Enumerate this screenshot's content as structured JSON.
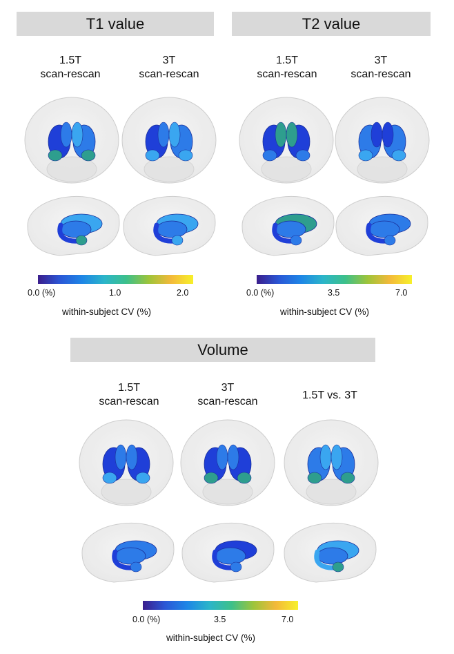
{
  "sections": [
    {
      "title": "T1 value",
      "columns": [
        {
          "label_line1": "1.5T",
          "label_line2": "scan-rescan"
        },
        {
          "label_line1": "3T",
          "label_line2": "scan-rescan"
        }
      ],
      "colorbar": {
        "ticks": [
          "0.0 (%)",
          "1.0",
          "2.0"
        ],
        "tick_values": [
          0.0,
          1.0,
          2.0
        ],
        "label": "within-subject CV (%)"
      }
    },
    {
      "title": "T2 value",
      "columns": [
        {
          "label_line1": "1.5T",
          "label_line2": "scan-rescan"
        },
        {
          "label_line1": "3T",
          "label_line2": "scan-rescan"
        }
      ],
      "colorbar": {
        "ticks": [
          "0.0 (%)",
          "3.5",
          "7.0"
        ],
        "tick_values": [
          0.0,
          3.5,
          7.0
        ],
        "label": "within-subject CV (%)"
      }
    },
    {
      "title": "Volume",
      "columns": [
        {
          "label_line1": "1.5T",
          "label_line2": "scan-rescan"
        },
        {
          "label_line1": "3T",
          "label_line2": "scan-rescan"
        },
        {
          "label_line1": "1.5T vs. 3T",
          "label_line2": ""
        }
      ],
      "colorbar": {
        "ticks": [
          "0.0 (%)",
          "3.5",
          "7.0"
        ],
        "tick_values": [
          0.0,
          3.5,
          7.0
        ],
        "label": "within-subject CV (%)"
      }
    }
  ],
  "colors": {
    "banner": "#d9d9d9",
    "colormap": [
      "#3b1e8c",
      "#2a57d6",
      "#1e86e6",
      "#2bb5c9",
      "#3dc08a",
      "#9ec43a",
      "#f3b93a",
      "#f7f02a"
    ],
    "low": "#1f3fd8",
    "mid": "#2d7be8",
    "light": "#3aa6f0",
    "teal": "#2e9e8e",
    "brain_outline": "#c8c8c8"
  }
}
